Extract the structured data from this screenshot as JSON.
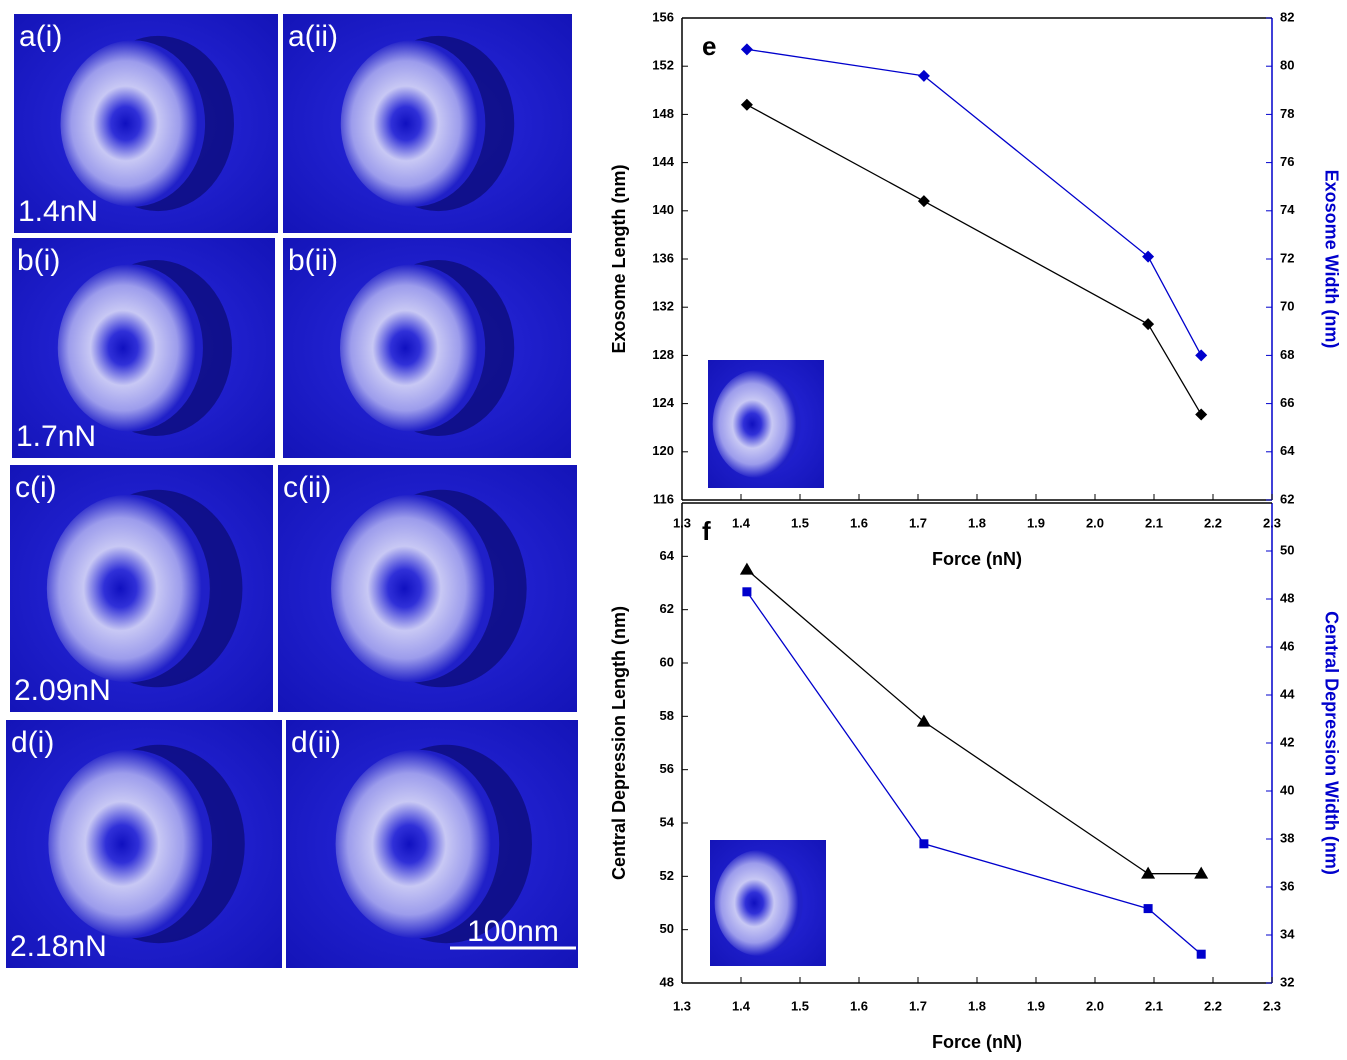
{
  "panels": [
    {
      "label": "a(i)",
      "force": "1.4nN"
    },
    {
      "label": "a(ii)"
    },
    {
      "label": "b(i)",
      "force": "1.7nN"
    },
    {
      "label": "b(ii)"
    },
    {
      "label": "c(i)",
      "force": "2.09nN"
    },
    {
      "label": "c(ii)"
    },
    {
      "label": "d(i)",
      "force": "2.18nN"
    },
    {
      "label": "d(ii)",
      "scale_bar": "100nm"
    }
  ],
  "chart_data": [
    {
      "type": "line",
      "title": "e",
      "x_label": "Force (nN)",
      "y_label": "Exosome Length (nm)",
      "y2_label": "Exosome Width (nm)",
      "x": [
        1.41,
        1.71,
        2.09,
        2.18
      ],
      "series": [
        {
          "color": "#000000",
          "marker": "diamond",
          "values": [
            148.8,
            140.8,
            130.6,
            123.1
          ]
        },
        {
          "color": "#0000cc",
          "marker": "diamond",
          "axis": "y2",
          "values": [
            80.7,
            79.6,
            72.1,
            68.0
          ]
        }
      ],
      "xlim": [
        1.3,
        2.3
      ],
      "xticks": [
        1.3,
        1.4,
        1.5,
        1.6,
        1.7,
        1.8,
        1.9,
        {
          "value": 2,
          "label": "2.0"
        },
        2.1,
        2.2,
        2.3
      ],
      "ylim": [
        116,
        156
      ],
      "yticks": [
        116,
        120,
        124,
        128,
        132,
        136,
        140,
        144,
        148,
        152,
        156
      ],
      "y2lim": [
        62,
        82
      ],
      "y2ticks": [
        62,
        64,
        66,
        68,
        70,
        72,
        74,
        76,
        78,
        80,
        82
      ]
    },
    {
      "type": "line",
      "title": "f",
      "x_label": "Force (nN)",
      "y_label": "Central Depression Length (nm)",
      "y2_label": "Central Depression Width (nm)",
      "x": [
        1.41,
        1.71,
        2.09,
        2.18
      ],
      "series": [
        {
          "color": "#000000",
          "marker": "triangle",
          "values": [
            63.5,
            57.8,
            52.1,
            52.1
          ]
        },
        {
          "color": "#0000cc",
          "marker": "square",
          "axis": "y2",
          "values": [
            48.3,
            37.8,
            35.1,
            33.2
          ]
        }
      ],
      "xlim": [
        1.3,
        2.3
      ],
      "xticks": [
        1.3,
        1.4,
        1.5,
        1.6,
        1.7,
        1.8,
        1.9,
        {
          "value": 2,
          "label": "2.0"
        },
        2.1,
        2.2,
        2.3
      ],
      "ylim": [
        48,
        66
      ],
      "yticks": [
        48,
        50,
        52,
        54,
        56,
        58,
        60,
        62,
        64
      ],
      "y2lim": [
        32,
        52
      ],
      "y2ticks": [
        32,
        34,
        36,
        38,
        40,
        42,
        44,
        46,
        48,
        50
      ]
    }
  ]
}
